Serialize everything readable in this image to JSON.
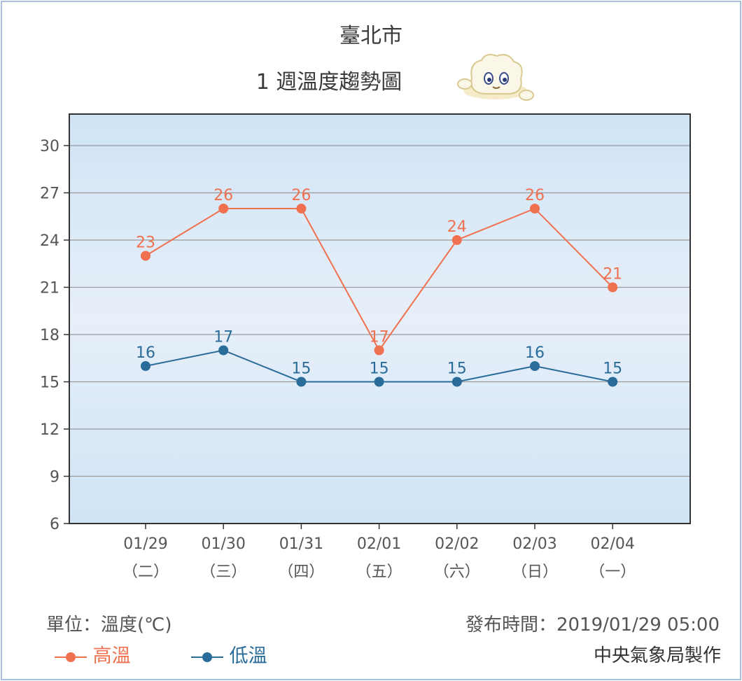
{
  "chart_data": {
    "type": "line",
    "title": "臺北市",
    "subtitle": "1 週溫度趨勢圖",
    "categories": [
      "01/29",
      "01/30",
      "01/31",
      "02/01",
      "02/02",
      "02/03",
      "02/04"
    ],
    "weekdays": [
      "（二）",
      "（三）",
      "（四）",
      "（五）",
      "（六）",
      "（日）",
      "（一）"
    ],
    "ylim": [
      6,
      32
    ],
    "yticks": [
      6,
      9,
      12,
      15,
      18,
      21,
      24,
      27,
      30
    ],
    "grid": true,
    "series": [
      {
        "name": "高溫",
        "color": "#f0714f",
        "values": [
          23,
          26,
          26,
          17,
          24,
          26,
          21
        ]
      },
      {
        "name": "低溫",
        "color": "#2a6c99",
        "values": [
          16,
          17,
          15,
          15,
          15,
          16,
          15
        ]
      }
    ],
    "legend_position": "bottom-left"
  },
  "footer": {
    "unit": "單位：溫度(℃)",
    "publish_time": "發布時間：2019/01/29 05:00",
    "credit": "中央氣象局製作"
  },
  "mascot_icon": "cloud-mascot-icon"
}
